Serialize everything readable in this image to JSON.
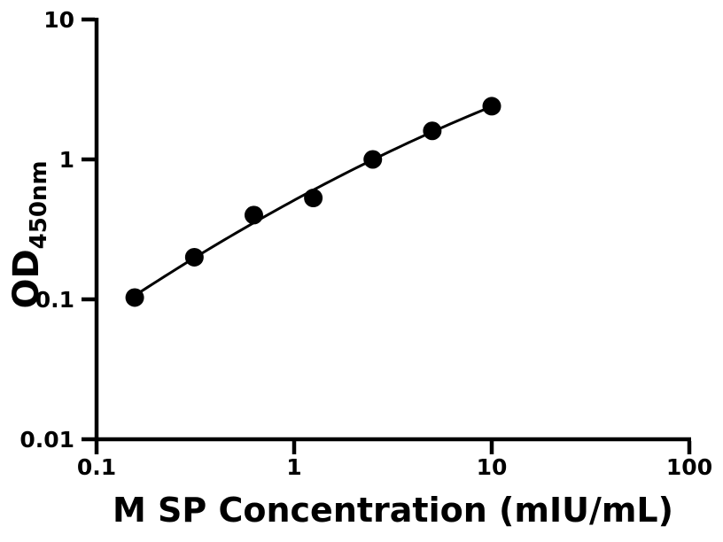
{
  "figure": {
    "background_color": "#ffffff",
    "ink_color": "#000000"
  },
  "chart_data": {
    "type": "scatter",
    "title": "",
    "xlabel": "M SP Concentration (mIU/mL)",
    "ylabel": "OD",
    "ylabel_subscript": "450nm",
    "x_scale": "log",
    "y_scale": "log",
    "xlim": [
      0.1,
      100
    ],
    "ylim": [
      0.01,
      10
    ],
    "grid": false,
    "legend": false,
    "x_ticks": [
      {
        "value": 0.1,
        "label": "0.1"
      },
      {
        "value": 1,
        "label": "1"
      },
      {
        "value": 10,
        "label": "10"
      },
      {
        "value": 100,
        "label": "100"
      }
    ],
    "y_ticks": [
      {
        "value": 10,
        "label": "10"
      },
      {
        "value": 1,
        "label": "1"
      },
      {
        "value": 0.1,
        "label": "0.1"
      },
      {
        "value": 0.01,
        "label": "0.01"
      }
    ],
    "series": [
      {
        "name": "standard-curve-points",
        "marker": "filled-circle",
        "color": "#000000",
        "x": [
          0.156,
          0.3125,
          0.625,
          1.25,
          2.5,
          5,
          10
        ],
        "y": [
          0.103,
          0.2,
          0.4,
          0.53,
          1.0,
          1.6,
          2.4
        ]
      }
    ],
    "fit_line": {
      "style": "smooth-quadratic-loglog-fit",
      "color": "#000000"
    }
  }
}
